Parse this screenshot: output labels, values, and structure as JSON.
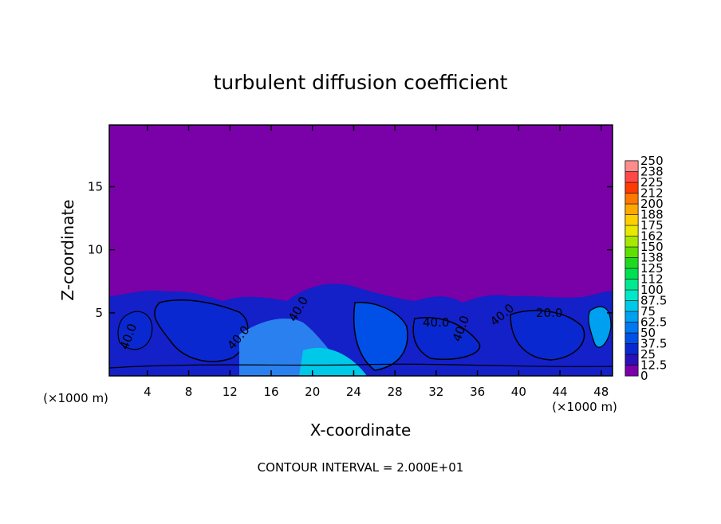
{
  "chart_data": {
    "type": "contour",
    "title": "turbulent diffusion coefficient",
    "x_label": "X-coordinate",
    "y_label": "Z-coordinate",
    "x_unit_label": "(×1000 m)",
    "y_unit_label": "(×1000 m)",
    "footer": "CONTOUR INTERVAL = 2.000E+01",
    "xlim": [
      0.3,
      49.1
    ],
    "xticks": [
      4,
      8,
      12,
      16,
      20,
      24,
      28,
      32,
      36,
      40,
      44,
      48
    ],
    "ylim": [
      0,
      19.9
    ],
    "yticks": [
      5,
      10,
      15
    ],
    "colorbar": {
      "levels": [
        0,
        12.5,
        25,
        37.5,
        50,
        62.5,
        75,
        87.5,
        100,
        {
          "value": 112.5,
          "label": "112"
        },
        125,
        {
          "value": 137.5,
          "label": "138"
        },
        150,
        {
          "value": 162.5,
          "label": "162"
        },
        175,
        {
          "value": 187.5,
          "label": "188"
        },
        200,
        {
          "value": 212.5,
          "label": "212"
        },
        225,
        {
          "value": 237.5,
          "label": "238"
        },
        250
      ],
      "colors": [
        "#7a00a8",
        "#2a10b8",
        "#0a28d0",
        "#0050e8",
        "#0078f0",
        "#00a0f0",
        "#00c8e8",
        "#00e8c8",
        "#00e890",
        "#00e050",
        "#20d820",
        "#60e000",
        "#a8e800",
        "#e8e800",
        "#ffd000",
        "#ffa800",
        "#ff7800",
        "#ff3c00",
        "#ff4848",
        "#ff8c8c"
      ]
    },
    "contour_labels": [
      "40.0",
      "40.0",
      "40.0",
      "40.0",
      "40.0",
      "20.0",
      "40.0"
    ]
  }
}
